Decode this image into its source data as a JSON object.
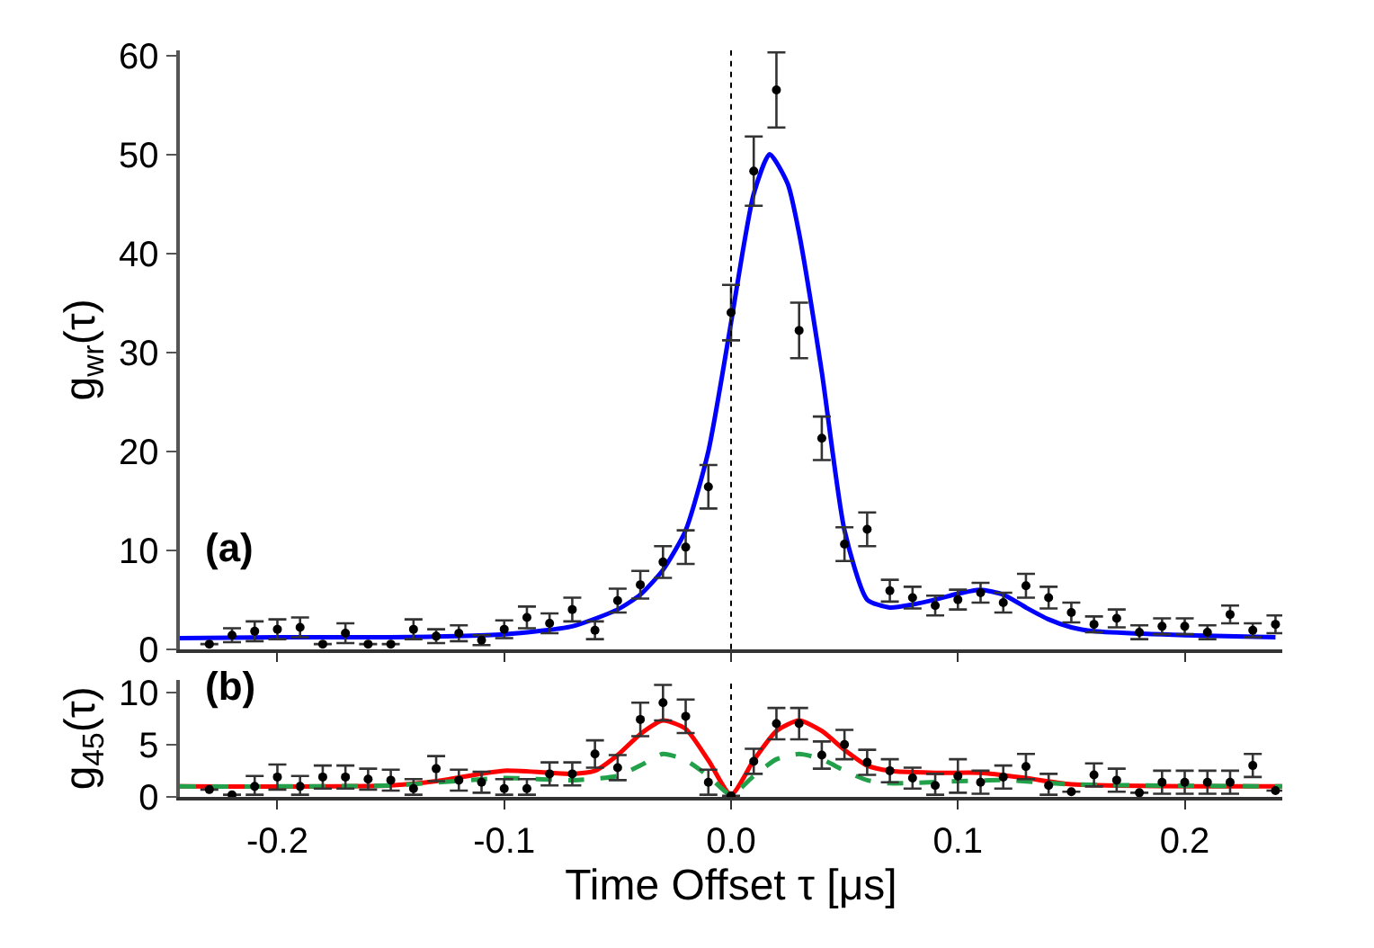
{
  "chart_data": [
    {
      "type": "scatter",
      "ylabel": "g$_{wr}$(τ)",
      "annotations": [
        "(a)"
      ],
      "xlim": [
        -0.243,
        0.243
      ],
      "ylim": [
        0,
        60.5
      ],
      "yticks": [
        0,
        10,
        20,
        30,
        40,
        50,
        60
      ],
      "xticks": [
        {
          "value": -0.2,
          "label": null
        },
        {
          "value": -0.1,
          "label": null
        },
        {
          "value": 0,
          "label": null
        },
        {
          "value": 0.1,
          "label": null
        },
        {
          "value": 0.2,
          "label": null
        }
      ],
      "tick_labels": "y",
      "ref_lines": [
        {
          "axis": "x",
          "value": 0,
          "color": "#000000",
          "line_style": "dotted"
        }
      ],
      "series": [
        {
          "marker": "circle",
          "color": "#000000",
          "x": [
            -0.23,
            -0.22,
            -0.21,
            -0.2,
            -0.19,
            -0.18,
            -0.17,
            -0.16,
            -0.15,
            -0.14,
            -0.13,
            -0.12,
            -0.11,
            -0.1,
            -0.09,
            -0.08,
            -0.07,
            -0.06,
            -0.05,
            -0.04,
            -0.03,
            -0.02,
            -0.01,
            0.0,
            0.01,
            0.02,
            0.03,
            0.04,
            0.05,
            0.06,
            0.07,
            0.08,
            0.09,
            0.1,
            0.11,
            0.12,
            0.13,
            0.14,
            0.15,
            0.16,
            0.17,
            0.18,
            0.19,
            0.2,
            0.21,
            0.22,
            0.23,
            0.24
          ],
          "values": [
            0.5,
            1.4,
            1.8,
            2.0,
            2.2,
            0.5,
            1.6,
            0.5,
            0.5,
            2.0,
            1.3,
            1.6,
            0.9,
            2.0,
            3.2,
            2.6,
            4.0,
            1.9,
            4.9,
            6.5,
            8.8,
            10.3,
            16.4,
            34.0,
            48.3,
            56.5,
            32.2,
            21.3,
            10.6,
            12.1,
            5.9,
            5.2,
            4.4,
            5.0,
            5.7,
            4.7,
            6.4,
            5.2,
            3.7,
            2.5,
            3.1,
            1.7,
            2.3,
            2.3,
            1.7,
            3.5,
            1.9,
            2.5
          ],
          "errors": [
            null,
            0.7,
            1.0,
            1.0,
            1.0,
            null,
            1.0,
            null,
            null,
            1.0,
            0.7,
            0.8,
            0.5,
            0.9,
            1.1,
            1.0,
            1.2,
            0.9,
            1.2,
            1.4,
            1.6,
            1.7,
            2.2,
            2.8,
            3.5,
            3.8,
            2.8,
            2.2,
            1.7,
            1.7,
            1.1,
            1.1,
            1.0,
            1.0,
            1.0,
            1.0,
            1.2,
            1.1,
            1.0,
            0.8,
            0.9,
            0.7,
            0.8,
            0.8,
            0.7,
            0.9,
            0.7,
            0.9
          ]
        },
        {
          "type": "line",
          "color": "#0000ff",
          "line_style": "solid",
          "x": [
            -0.243,
            -0.2,
            -0.15,
            -0.1,
            -0.07,
            -0.05,
            -0.04,
            -0.03,
            -0.02,
            -0.01,
            0.0,
            0.005,
            0.01,
            0.017,
            0.025,
            0.03,
            0.04,
            0.05,
            0.06,
            0.07,
            0.08,
            0.09,
            0.1,
            0.11,
            0.12,
            0.13,
            0.14,
            0.15,
            0.16,
            0.2,
            0.24
          ],
          "values": [
            1.1,
            1.2,
            1.2,
            1.5,
            2.3,
            4.0,
            5.5,
            8.0,
            12.0,
            20.0,
            33.0,
            40.0,
            46.0,
            50.0,
            47.0,
            42.0,
            28.0,
            12.0,
            5.0,
            4.2,
            4.5,
            5.0,
            5.6,
            6.0,
            5.5,
            4.2,
            3.0,
            2.2,
            1.8,
            1.4,
            1.2
          ]
        }
      ]
    },
    {
      "type": "scatter",
      "ylabel": "g$_{45}$(τ)",
      "xlabel": "Time Offset τ [μs]",
      "annotations": [
        "(b)"
      ],
      "xlim": [
        -0.243,
        0.243
      ],
      "ylim": [
        0,
        11.2
      ],
      "yticks": [
        0,
        5,
        10
      ],
      "xticks": [
        -0.2,
        -0.1,
        {
          "value": 0,
          "label": "0.0"
        },
        0.1,
        0.2
      ],
      "ref_lines": [
        {
          "axis": "x",
          "value": 0,
          "color": "#000000",
          "line_style": "dotted"
        }
      ],
      "series": [
        {
          "marker": "circle",
          "color": "#000000",
          "x": [
            -0.23,
            -0.22,
            -0.21,
            -0.2,
            -0.19,
            -0.18,
            -0.17,
            -0.16,
            -0.15,
            -0.14,
            -0.13,
            -0.12,
            -0.11,
            -0.1,
            -0.09,
            -0.08,
            -0.07,
            -0.06,
            -0.05,
            -0.04,
            -0.03,
            -0.02,
            -0.01,
            0.0,
            0.01,
            0.02,
            0.03,
            0.04,
            0.05,
            0.06,
            0.07,
            0.08,
            0.09,
            0.1,
            0.11,
            0.12,
            0.13,
            0.14,
            0.15,
            0.16,
            0.17,
            0.18,
            0.19,
            0.2,
            0.21,
            0.22,
            0.23,
            0.24
          ],
          "values": [
            0.7,
            0.2,
            1.0,
            1.9,
            1.0,
            1.9,
            1.9,
            1.7,
            1.6,
            0.8,
            2.7,
            1.6,
            1.4,
            0.8,
            0.8,
            2.2,
            2.2,
            4.1,
            2.8,
            7.4,
            9.0,
            7.7,
            1.4,
            0.1,
            3.4,
            7.0,
            7.0,
            4.0,
            5.0,
            3.3,
            2.5,
            1.8,
            1.1,
            2.0,
            1.4,
            1.9,
            2.9,
            1.1,
            0.5,
            2.1,
            1.6,
            0.4,
            1.4,
            1.4,
            1.4,
            1.4,
            3.0,
            0.6
          ],
          "errors": [
            null,
            null,
            [
              0.8,
              1.0
            ],
            1.2,
            [
              0.8,
              1.0
            ],
            1.1,
            1.1,
            1.0,
            1.0,
            [
              0.6,
              0.9
            ],
            1.2,
            1.0,
            1.0,
            [
              0.6,
              0.9
            ],
            [
              0.6,
              0.9
            ],
            1.1,
            1.1,
            1.3,
            1.2,
            1.6,
            1.7,
            1.6,
            1.2,
            null,
            1.2,
            1.5,
            1.5,
            1.3,
            1.4,
            1.2,
            1.1,
            1.0,
            [
              0.9,
              1.1
            ],
            1.6,
            1.1,
            1.1,
            1.2,
            [
              0.9,
              1.1
            ],
            null,
            1.1,
            1.1,
            null,
            1.1,
            1.1,
            1.1,
            1.1,
            1.1,
            null
          ]
        },
        {
          "type": "line",
          "color": "#ff0000",
          "line_style": "solid",
          "x": [
            -0.243,
            -0.15,
            -0.13,
            -0.1,
            -0.07,
            -0.06,
            -0.05,
            -0.04,
            -0.03,
            -0.02,
            -0.01,
            0.0,
            0.01,
            0.02,
            0.03,
            0.04,
            0.05,
            0.06,
            0.07,
            0.09,
            0.11,
            0.13,
            0.15,
            0.243
          ],
          "values": [
            1.0,
            1.1,
            1.5,
            2.5,
            2.2,
            2.5,
            4.0,
            6.0,
            7.3,
            6.5,
            3.5,
            0.2,
            3.5,
            6.3,
            7.3,
            6.3,
            4.5,
            3.0,
            2.5,
            2.3,
            2.3,
            1.8,
            1.2,
            1.0
          ]
        },
        {
          "type": "line",
          "color": "#22a04a",
          "line_style": "dashed",
          "x": [
            -0.243,
            -0.15,
            -0.1,
            -0.07,
            -0.05,
            -0.04,
            -0.03,
            -0.02,
            -0.01,
            0.0,
            0.01,
            0.02,
            0.03,
            0.04,
            0.05,
            0.06,
            0.07,
            0.1,
            0.12,
            0.15,
            0.243
          ],
          "values": [
            1.0,
            1.1,
            1.8,
            1.6,
            2.0,
            3.0,
            4.1,
            3.5,
            2.0,
            0.2,
            2.0,
            3.6,
            4.1,
            3.6,
            2.5,
            1.6,
            1.3,
            1.5,
            1.6,
            1.2,
            1.0
          ]
        }
      ]
    }
  ]
}
